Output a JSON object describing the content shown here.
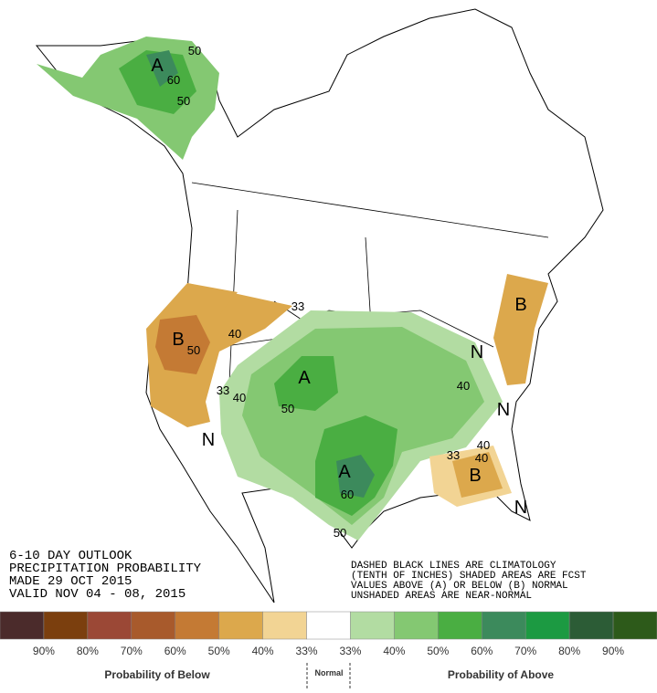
{
  "map_labels": [
    "50",
    "A",
    "60",
    "50",
    "33",
    "40",
    "B",
    "50",
    "A",
    "33",
    "40",
    "50",
    "A",
    "60",
    "50",
    "B",
    "40",
    "N",
    "40",
    "N",
    "33",
    "40",
    "B",
    "N",
    "N"
  ],
  "outlook": {
    "lines": [
      "6-10 DAY OUTLOOK",
      "PRECIPITATION PROBABILITY",
      "MADE  29 OCT 2015",
      "VALID  NOV 04 - 08, 2015"
    ]
  },
  "note": {
    "lines": [
      "DASHED BLACK LINES ARE CLIMATOLOGY",
      "(TENTH OF INCHES) SHADED AREAS ARE FCST",
      "VALUES ABOVE (A) OR BELOW (B) NORMAL",
      "UNSHADED AREAS ARE NEAR-NORMAL"
    ]
  },
  "legend": {
    "colors": [
      "#4b2b2b",
      "#7b3f0e",
      "#9b4836",
      "#a85a2c",
      "#c47a34",
      "#dca84c",
      "#f2d494",
      "#ffffff",
      "#b2dca2",
      "#84c872",
      "#4aae42",
      "#3c8a5c",
      "#1c9a42",
      "#2c5c36",
      "#2d5a1a"
    ],
    "labels": [
      "90%",
      "80%",
      "70%",
      "60%",
      "50%",
      "40%",
      "33%",
      "33%",
      "40%",
      "50%",
      "60%",
      "70%",
      "80%",
      "90%"
    ],
    "below_title": "Probability of Below",
    "normal_title": "Normal",
    "above_title": "Probability of Above"
  }
}
